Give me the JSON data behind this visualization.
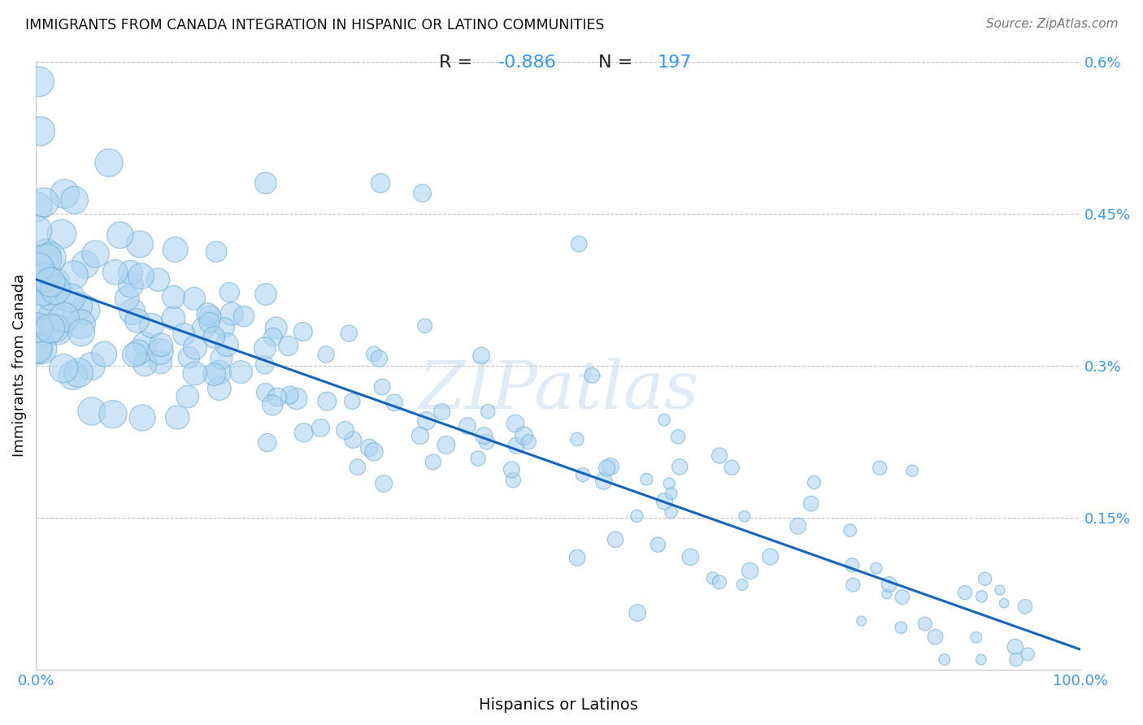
{
  "title": "IMMIGRANTS FROM CANADA INTEGRATION IN HISPANIC OR LATINO COMMUNITIES",
  "source": "Source: ZipAtlas.com",
  "xlabel": "Hispanics or Latinos",
  "ylabel": "Immigrants from Canada",
  "R": -0.886,
  "N": 197,
  "xlim": [
    0.0,
    1.0
  ],
  "ylim": [
    0.0,
    0.006
  ],
  "yticks": [
    0.0,
    0.0015,
    0.003,
    0.0045,
    0.006
  ],
  "ytick_labels": [
    "",
    "0.15%",
    "0.3%",
    "0.45%",
    "0.6%"
  ],
  "xticks": [
    0.0,
    0.25,
    0.5,
    0.75,
    1.0
  ],
  "xtick_labels": [
    "0.0%",
    "",
    "",
    "",
    "100.0%"
  ],
  "watermark": "ZIPatlas",
  "scatter_color": "#ADD4F0",
  "scatter_edge_color": "#6AAED6",
  "line_color": "#1565C0",
  "title_color": "#111111",
  "axis_label_color": "#111111",
  "tick_label_color": "#3399FF",
  "grid_color": "#BBBBBB",
  "background_color": "#FFFFFF",
  "annotation_box_facecolor": "#FFFFFF",
  "annotation_border_color": "#BBBBBB",
  "seed": 42,
  "n_points": 197,
  "intercept": 0.00385,
  "slope": -0.00365,
  "noise_std": 0.00048
}
